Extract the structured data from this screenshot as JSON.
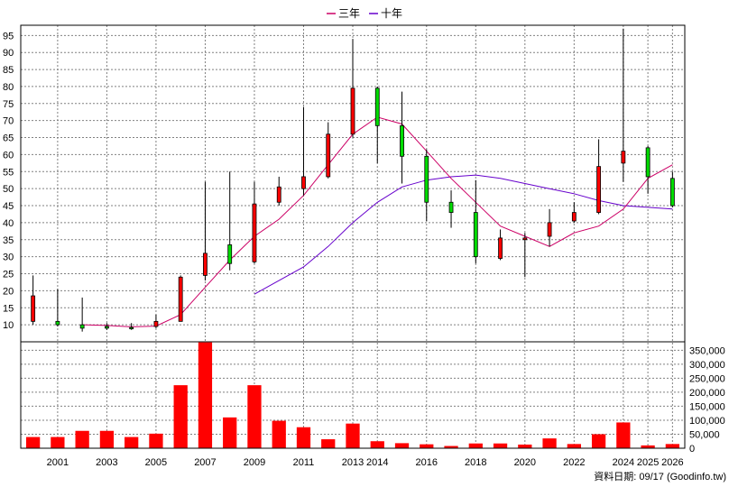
{
  "chart_data": {
    "type": "candlestick+bar",
    "legend": [
      {
        "name": "三年",
        "color": "#cc0066"
      },
      {
        "name": "十年",
        "color": "#6600cc"
      }
    ],
    "price_axis": {
      "min": 5,
      "max": 98,
      "ticks": [
        10,
        15,
        20,
        25,
        30,
        35,
        40,
        45,
        50,
        55,
        60,
        65,
        70,
        75,
        80,
        85,
        90,
        95
      ],
      "side": "left"
    },
    "volume_axis": {
      "min": 0,
      "max": 380000,
      "ticks": [
        0,
        50000,
        100000,
        150000,
        200000,
        250000,
        300000,
        350000
      ],
      "tick_labels": [
        "0",
        "50,000",
        "100,000",
        "150,000",
        "200,000",
        "250,000",
        "300,000",
        "350,000"
      ],
      "side": "right"
    },
    "x_ticks": [
      "2001",
      "2003",
      "2005",
      "2007",
      "2009",
      "2011",
      "2013",
      "2014",
      "2016",
      "2018",
      "2020",
      "2022",
      "2024",
      "2025",
      "2026"
    ],
    "x_tick_index": [
      1,
      3,
      5,
      7,
      9,
      11,
      13,
      14,
      16,
      18,
      20,
      22,
      24,
      25,
      26
    ],
    "periods": [
      {
        "year": 2000,
        "open": 11,
        "high": 24.5,
        "low": 10,
        "close": 18.5,
        "volume": 40000
      },
      {
        "year": 2001,
        "open": 11,
        "high": 20.5,
        "low": 9.5,
        "close": 10,
        "volume": 40000
      },
      {
        "year": 2002,
        "open": 10,
        "high": 18,
        "low": 8,
        "close": 9,
        "volume": 62000
      },
      {
        "year": 2003,
        "open": 9.5,
        "high": 10.5,
        "low": 8.5,
        "close": 9,
        "volume": 62000
      },
      {
        "year": 2004,
        "open": 9.2,
        "high": 10.5,
        "low": 8.5,
        "close": 9,
        "volume": 40000
      },
      {
        "year": 2005,
        "open": 9.5,
        "high": 13,
        "low": 9,
        "close": 11,
        "volume": 52000
      },
      {
        "year": 2006,
        "open": 11,
        "high": 24.5,
        "low": 11,
        "close": 24,
        "volume": 225000
      },
      {
        "year": 2007,
        "open": 24.5,
        "high": 52,
        "low": 23,
        "close": 31,
        "volume": 378000
      },
      {
        "year": 2008,
        "open": 33.5,
        "high": 55,
        "low": 26,
        "close": 28,
        "volume": 110000
      },
      {
        "year": 2009,
        "open": 28.5,
        "high": 52,
        "low": 28,
        "close": 45.5,
        "volume": 225000
      },
      {
        "year": 2010,
        "open": 46,
        "high": 53.5,
        "low": 45,
        "close": 50.5,
        "volume": 98000
      },
      {
        "year": 2011,
        "open": 50,
        "high": 74,
        "low": 48,
        "close": 53.5,
        "volume": 75000
      },
      {
        "year": 2012,
        "open": 53.5,
        "high": 69.5,
        "low": 53,
        "close": 66,
        "volume": 32000
      },
      {
        "year": 2013,
        "open": 66,
        "high": 94,
        "low": 65,
        "close": 79.5,
        "volume": 88000
      },
      {
        "year": 2014,
        "open": 79.5,
        "high": 80,
        "low": 57.5,
        "close": 68.5,
        "volume": 25000
      },
      {
        "year": 2015,
        "open": 68.5,
        "high": 78.5,
        "low": 51.5,
        "close": 59.5,
        "volume": 18000
      },
      {
        "year": 2016,
        "open": 59.5,
        "high": 61.5,
        "low": 40.5,
        "close": 46,
        "volume": 14000
      },
      {
        "year": 2017,
        "open": 46,
        "high": 49.5,
        "low": 38.5,
        "close": 43,
        "volume": 8000
      },
      {
        "year": 2018,
        "open": 43,
        "high": 52.5,
        "low": 28,
        "close": 30,
        "volume": 17000
      },
      {
        "year": 2019,
        "open": 29.5,
        "high": 38,
        "low": 29,
        "close": 35.5,
        "volume": 17000
      },
      {
        "year": 2020,
        "open": 35,
        "high": 37,
        "low": 24,
        "close": 35.5,
        "volume": 13000
      },
      {
        "year": 2021,
        "open": 36,
        "high": 44,
        "low": 33,
        "close": 40,
        "volume": 35000
      },
      {
        "year": 2022,
        "open": 40.5,
        "high": 46,
        "low": 40,
        "close": 43,
        "volume": 15000
      },
      {
        "year": 2023,
        "open": 43,
        "high": 64.5,
        "low": 42.5,
        "close": 56.5,
        "volume": 50000
      },
      {
        "year": 2024,
        "open": 57.5,
        "high": 97,
        "low": 52,
        "close": 61,
        "volume": 92000
      },
      {
        "year": 2025,
        "open": 62,
        "high": 62.5,
        "low": 48.5,
        "close": 53.5,
        "volume": 10000
      },
      {
        "year": 2026,
        "open": 53,
        "high": 55,
        "low": 44.5,
        "close": 45,
        "volume": 15000
      }
    ],
    "ma_3y": [
      null,
      null,
      10,
      9.8,
      9.4,
      9.6,
      13,
      21,
      29,
      36,
      41,
      48,
      57,
      66,
      71,
      69,
      61,
      53,
      46,
      39,
      36,
      33,
      37,
      39,
      44,
      53,
      57
    ],
    "ma_10y": [
      null,
      null,
      null,
      null,
      null,
      null,
      null,
      null,
      null,
      19,
      23,
      27,
      33,
      40,
      46,
      50.5,
      52.5,
      53.5,
      54,
      53,
      51.5,
      50,
      48.5,
      46.5,
      45,
      44.5,
      44
    ],
    "source_text": "資料日期: 09/17  (Goodinfo.tw)"
  }
}
